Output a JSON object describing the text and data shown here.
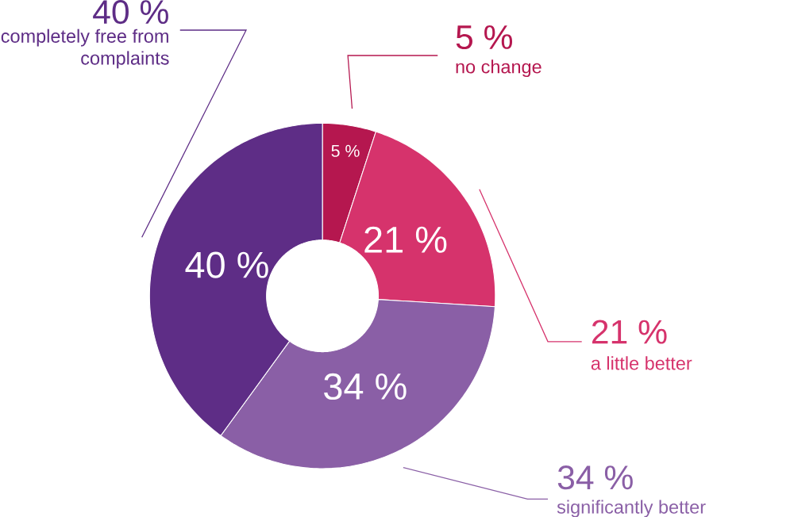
{
  "chart_data": {
    "type": "donut",
    "categories": [
      "no change",
      "a little better",
      "significantly better",
      "completely free from complaints"
    ],
    "values": [
      5,
      21,
      34,
      40
    ],
    "colors": [
      "#b5174f",
      "#d6336c",
      "#8a5fa6",
      "#5e2d86"
    ],
    "value_labels": [
      "5 %",
      "21 %",
      "34 %",
      "40 %"
    ]
  }
}
